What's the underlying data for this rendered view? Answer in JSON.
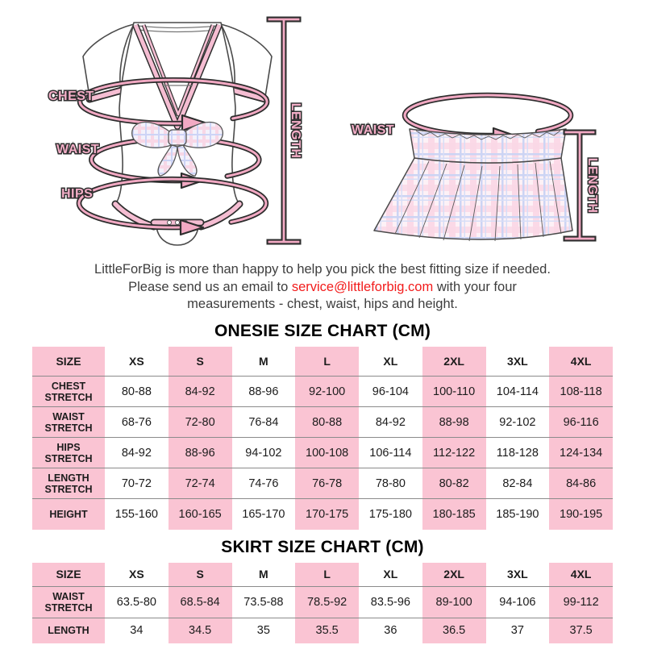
{
  "diagrams": {
    "onesie": {
      "chest_label": "CHEST",
      "waist_label": "WAIST",
      "hips_label": "HIPS",
      "length_label": "LENGTH"
    },
    "skirt": {
      "waist_label": "WAIST",
      "length_label": "LENGTH"
    }
  },
  "intro": {
    "line1": "LittleForBig is more than happy to help you pick the best fitting size if needed.",
    "line2_before": "Please send us an email to ",
    "email": "service@littleforbig.com",
    "line2_after": " with your four",
    "line3": "measurements - chest, waist, hips and height."
  },
  "onesie_chart": {
    "title": "ONESIE SIZE CHART (CM)",
    "columns": [
      "SIZE",
      "XS",
      "S",
      "M",
      "L",
      "XL",
      "2XL",
      "3XL",
      "4XL"
    ],
    "rows": [
      {
        "label": "CHEST STRETCH",
        "values": [
          "80-88",
          "84-92",
          "88-96",
          "92-100",
          "96-104",
          "100-110",
          "104-114",
          "108-118"
        ]
      },
      {
        "label": "WAIST STRETCH",
        "values": [
          "68-76",
          "72-80",
          "76-84",
          "80-88",
          "84-92",
          "88-98",
          "92-102",
          "96-116"
        ]
      },
      {
        "label": "HIPS STRETCH",
        "values": [
          "84-92",
          "88-96",
          "94-102",
          "100-108",
          "106-114",
          "112-122",
          "118-128",
          "124-134"
        ]
      },
      {
        "label": "LENGTH STRETCH",
        "values": [
          "70-72",
          "72-74",
          "74-76",
          "76-78",
          "78-80",
          "80-82",
          "82-84",
          "84-86"
        ]
      },
      {
        "label": "HEIGHT",
        "values": [
          "155-160",
          "160-165",
          "165-170",
          "170-175",
          "175-180",
          "180-185",
          "185-190",
          "190-195"
        ]
      }
    ]
  },
  "skirt_chart": {
    "title": "SKIRT SIZE CHART (CM)",
    "columns": [
      "SIZE",
      "XS",
      "S",
      "M",
      "L",
      "XL",
      "2XL",
      "3XL",
      "4XL"
    ],
    "rows": [
      {
        "label": "WAIST STRETCH",
        "values": [
          "63.5-80",
          "68.5-84",
          "73.5-88",
          "78.5-92",
          "83.5-96",
          "89-100",
          "94-106",
          "99-112"
        ]
      },
      {
        "label": "LENGTH",
        "values": [
          "34",
          "34.5",
          "35",
          "35.5",
          "36",
          "36.5",
          "37",
          "37.5"
        ]
      }
    ]
  },
  "colors": {
    "table_pink": "#FAC4D3",
    "email_red": "#F21B1B",
    "accent_pink": "#F2A9C3"
  }
}
